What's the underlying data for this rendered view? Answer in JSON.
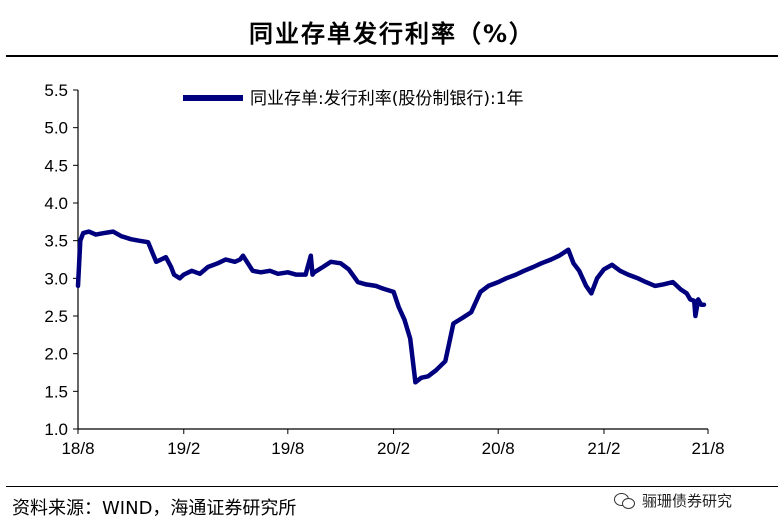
{
  "title": "同业存单发行利率（%）",
  "footer": "资料来源：WIND，海通证券研究所",
  "watermark": "骊珊债券研究",
  "colors": {
    "series": "#00007F",
    "axis": "#000000",
    "background": "#FFFFFF"
  },
  "chart_data": {
    "type": "line",
    "title": "同业存单发行利率（%）",
    "xlabel": "",
    "ylabel": "",
    "ylim": [
      1.0,
      5.5
    ],
    "yticks": [
      "1.0",
      "1.5",
      "2.0",
      "2.5",
      "3.0",
      "3.5",
      "4.0",
      "4.5",
      "5.0",
      "5.5"
    ],
    "xticks": [
      "18/8",
      "19/2",
      "19/8",
      "20/2",
      "20/8",
      "21/2",
      "21/8"
    ],
    "grid": false,
    "legend_position": "top",
    "series": [
      {
        "name": "同业存单:发行利率(股份制银行):1年",
        "x": [
          "2018-08-01",
          "2018-08-05",
          "2018-08-10",
          "2018-08-20",
          "2018-09-01",
          "2018-09-15",
          "2018-10-01",
          "2018-10-15",
          "2018-11-01",
          "2018-11-15",
          "2018-12-01",
          "2018-12-15",
          "2019-01-01",
          "2019-01-10",
          "2019-01-15",
          "2019-01-25",
          "2019-02-01",
          "2019-02-15",
          "2019-03-01",
          "2019-03-15",
          "2019-04-01",
          "2019-04-15",
          "2019-05-01",
          "2019-05-10",
          "2019-05-15",
          "2019-06-01",
          "2019-06-15",
          "2019-07-01",
          "2019-07-15",
          "2019-08-01",
          "2019-08-15",
          "2019-09-01",
          "2019-09-10",
          "2019-09-13",
          "2019-09-16",
          "2019-10-01",
          "2019-10-15",
          "2019-11-01",
          "2019-11-15",
          "2019-12-01",
          "2019-12-15",
          "2020-01-01",
          "2020-01-15",
          "2020-02-01",
          "2020-02-10",
          "2020-02-20",
          "2020-03-01",
          "2020-03-10",
          "2020-03-20",
          "2020-04-01",
          "2020-04-15",
          "2020-05-01",
          "2020-05-15",
          "2020-06-01",
          "2020-06-15",
          "2020-07-01",
          "2020-07-15",
          "2020-08-01",
          "2020-08-15",
          "2020-09-01",
          "2020-09-15",
          "2020-10-01",
          "2020-10-15",
          "2020-11-01",
          "2020-11-15",
          "2020-12-01",
          "2020-12-10",
          "2020-12-20",
          "2021-01-01",
          "2021-01-10",
          "2021-01-20",
          "2021-02-01",
          "2021-02-15",
          "2021-03-01",
          "2021-03-15",
          "2021-04-01",
          "2021-04-15",
          "2021-05-01",
          "2021-05-15",
          "2021-06-01",
          "2021-06-15",
          "2021-06-25",
          "2021-07-01",
          "2021-07-08",
          "2021-07-10",
          "2021-07-15",
          "2021-07-20",
          "2021-07-25"
        ],
        "values": [
          2.9,
          3.5,
          3.6,
          3.62,
          3.58,
          3.6,
          3.62,
          3.56,
          3.52,
          3.5,
          3.48,
          3.22,
          3.28,
          3.15,
          3.05,
          3.0,
          3.05,
          3.1,
          3.06,
          3.15,
          3.2,
          3.25,
          3.22,
          3.25,
          3.3,
          3.1,
          3.08,
          3.1,
          3.06,
          3.08,
          3.05,
          3.05,
          3.3,
          3.05,
          3.08,
          3.15,
          3.22,
          3.2,
          3.12,
          2.95,
          2.92,
          2.9,
          2.86,
          2.82,
          2.62,
          2.45,
          2.2,
          1.62,
          1.68,
          1.7,
          1.78,
          1.9,
          2.4,
          2.48,
          2.55,
          2.82,
          2.9,
          2.95,
          3.0,
          3.05,
          3.1,
          3.15,
          3.2,
          3.25,
          3.3,
          3.38,
          3.2,
          3.1,
          2.9,
          2.8,
          3.0,
          3.12,
          3.18,
          3.1,
          3.05,
          3.0,
          2.95,
          2.9,
          2.92,
          2.95,
          2.85,
          2.8,
          2.72,
          2.7,
          2.5,
          2.72,
          2.65,
          2.65
        ]
      }
    ]
  }
}
